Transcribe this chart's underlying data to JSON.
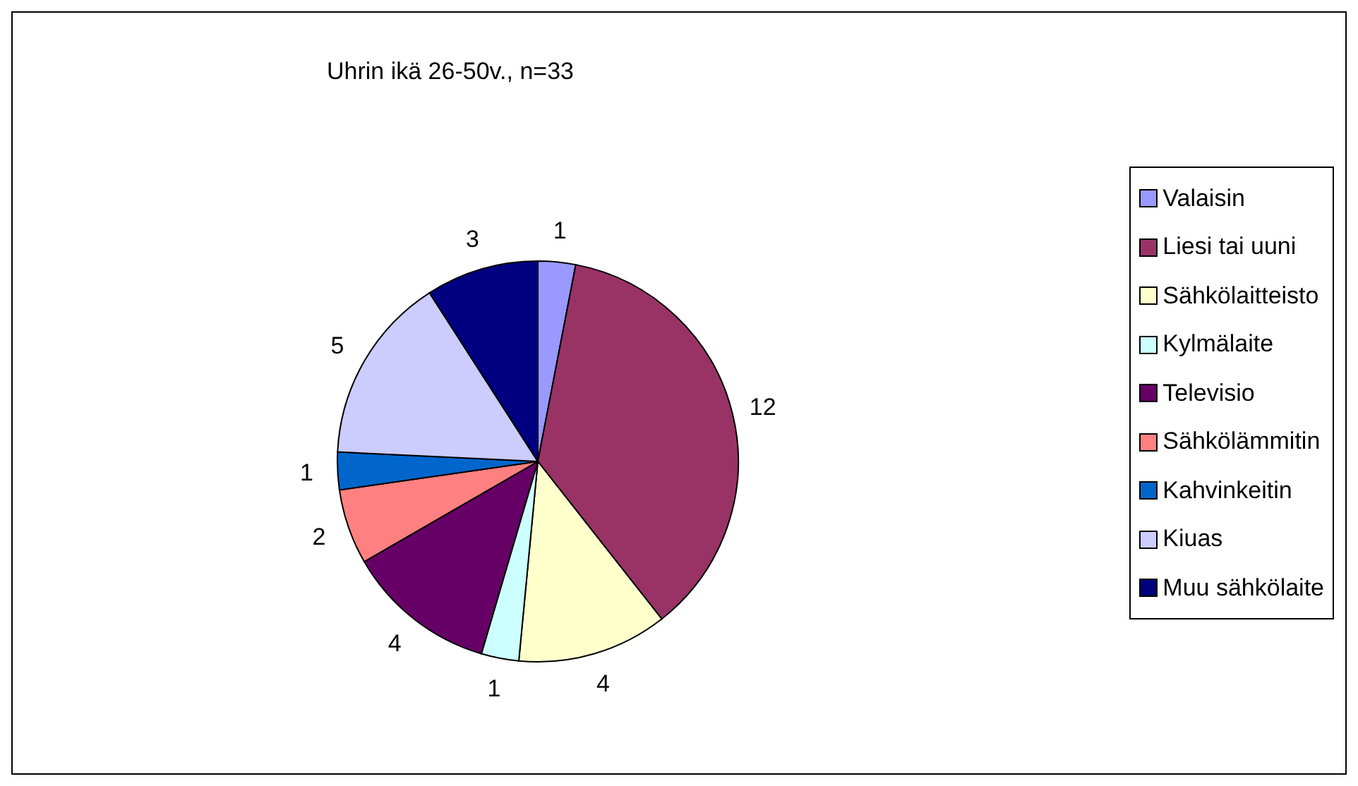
{
  "chart_data": {
    "type": "pie",
    "title": "Uhrin ikä 26-50v., n=33",
    "categories": [
      "Valaisin",
      "Liesi tai uuni",
      "Sähkölaitteisto",
      "Kylmälaite",
      "Televisio",
      "Sähkölämmitin",
      "Kahvinkeitin",
      "Kiuas",
      "Muu sähkölaite"
    ],
    "values": [
      1,
      12,
      4,
      1,
      4,
      2,
      1,
      5,
      3
    ],
    "colors": [
      "#9999ff",
      "#993366",
      "#ffffcc",
      "#ccffff",
      "#660066",
      "#ff8080",
      "#0066cc",
      "#ccccff",
      "#000080"
    ],
    "data_labels": true,
    "legend": "right"
  }
}
